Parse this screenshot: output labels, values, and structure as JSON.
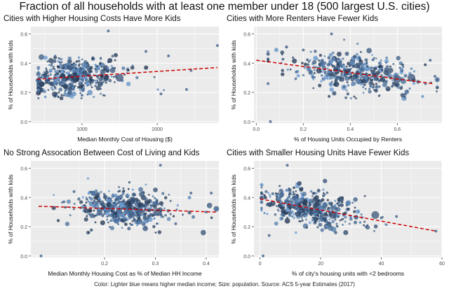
{
  "title": "Fraction of all households with at least one member under 18 (500 largest U.S. cities)",
  "caption": "Color: Lighter blue means higher median income; Size: population. Source: ACS 5-year Estimates (2017)",
  "colors": {
    "panel_bg": "#ebebeb",
    "grid": "#ffffff",
    "trend": "#cc0000",
    "point_dark": "#22344f",
    "point_light": "#6d9fd6"
  },
  "chart_data": [
    {
      "type": "scatter",
      "title": "Cities with Higher Housing Costs Have More Kids",
      "xlabel": "Median Monthly Cost of Housing ($)",
      "ylabel": "% of Households with kids",
      "xlim": [
        320,
        2820
      ],
      "ylim": [
        -0.01,
        0.65
      ],
      "xticks": [
        1000,
        2000
      ],
      "xtick_labels": [
        "1000",
        "2000"
      ],
      "yticks": [
        0.0,
        0.2,
        0.4,
        0.6
      ],
      "ytick_labels": [
        "0.0",
        "0.2",
        "0.4",
        "0.6"
      ],
      "trend": {
        "x": [
          400,
          2800
        ],
        "y": [
          0.29,
          0.37
        ]
      },
      "cluster": {
        "x_center": 900,
        "x_spread": 260,
        "x_min": 420,
        "x_max": 2780,
        "y_center": 0.33,
        "y_spread": 0.065,
        "count": 480
      },
      "points": [
        {
          "x": 1350,
          "y": 0.62
        },
        {
          "x": 2800,
          "y": 0.52
        },
        {
          "x": 2450,
          "y": 0.35
        },
        {
          "x": 2050,
          "y": 0.19
        },
        {
          "x": 2390,
          "y": 0.22
        },
        {
          "x": 1450,
          "y": 0.31
        },
        {
          "x": 430,
          "y": 0.3
        },
        {
          "x": 1000,
          "y": 0.18
        },
        {
          "x": 1850,
          "y": 0.48
        },
        {
          "x": 2150,
          "y": 0.45
        }
      ],
      "big_points": [
        {
          "x": 1500,
          "y": 0.3
        }
      ]
    },
    {
      "type": "scatter",
      "title": "Cities with More Renters Have Fewer Kids",
      "xlabel": "% of Housing Units Occupied by Renters",
      "ylabel": "% of Households with kids",
      "xlim": [
        -0.01,
        0.79
      ],
      "ylim": [
        -0.01,
        0.65
      ],
      "xticks": [
        0.0,
        0.2,
        0.4,
        0.6
      ],
      "xtick_labels": [
        "0.0",
        "0.2",
        "0.4",
        "0.6"
      ],
      "yticks": [
        0.0,
        0.2,
        0.4,
        0.6
      ],
      "ytick_labels": [
        "0.0",
        "0.2",
        "0.4",
        "0.6"
      ],
      "trend": {
        "x": [
          0.0,
          0.75
        ],
        "y": [
          0.42,
          0.26
        ]
      },
      "cluster": {
        "x_center": 0.42,
        "x_spread": 0.11,
        "x_min": 0.05,
        "x_max": 0.77,
        "y_center": 0.33,
        "y_spread": 0.065,
        "count": 480
      },
      "points": [
        {
          "x": 0.06,
          "y": 0.0
        },
        {
          "x": 0.05,
          "y": 0.26
        },
        {
          "x": 0.76,
          "y": 0.31
        },
        {
          "x": 0.74,
          "y": 0.42
        },
        {
          "x": 0.32,
          "y": 0.6
        },
        {
          "x": 0.2,
          "y": 0.49
        },
        {
          "x": 0.17,
          "y": 0.34
        },
        {
          "x": 0.72,
          "y": 0.26
        }
      ],
      "big_points": [
        {
          "x": 0.66,
          "y": 0.3
        },
        {
          "x": 0.6,
          "y": 0.29
        }
      ]
    },
    {
      "type": "scatter",
      "title": "No Strong Assocation Between Cost of Living and Kids",
      "xlabel": "Median Monthly Housing Cost as % of Median HH Income",
      "ylabel": "% of Households with kids",
      "xlim": [
        0.055,
        0.425
      ],
      "ylim": [
        -0.01,
        0.65
      ],
      "xticks": [
        0.2,
        0.3,
        0.4
      ],
      "xtick_labels": [
        "0.2",
        "0.3",
        "0.4"
      ],
      "yticks": [
        0.0,
        0.2,
        0.4,
        0.6
      ],
      "ytick_labels": [
        "0.0",
        "0.2",
        "0.4",
        "0.6"
      ],
      "trend": {
        "x": [
          0.07,
          0.42
        ],
        "y": [
          0.34,
          0.3
        ]
      },
      "cluster": {
        "x_center": 0.24,
        "x_spread": 0.04,
        "x_min": 0.1,
        "x_max": 0.42,
        "y_center": 0.33,
        "y_spread": 0.065,
        "count": 480
      },
      "points": [
        {
          "x": 0.075,
          "y": 0.0
        },
        {
          "x": 0.31,
          "y": 0.62
        },
        {
          "x": 0.41,
          "y": 0.43
        },
        {
          "x": 0.37,
          "y": 0.43
        },
        {
          "x": 0.14,
          "y": 0.44
        },
        {
          "x": 0.34,
          "y": 0.22
        },
        {
          "x": 0.4,
          "y": 0.3
        },
        {
          "x": 0.12,
          "y": 0.37
        }
      ],
      "big_points": [
        {
          "x": 0.305,
          "y": 0.3
        }
      ]
    },
    {
      "type": "scatter",
      "title": "Cities with Smaller Housing Units Have Fewer Kids",
      "xlabel": "% of city's housing units with <2 bedrooms",
      "ylabel": "% of Households with kids",
      "xlim": [
        -2,
        60
      ],
      "ylim": [
        -0.01,
        0.65
      ],
      "xticks": [
        0,
        20,
        40,
        60
      ],
      "xtick_labels": [
        "0",
        "20",
        "40",
        "60"
      ],
      "yticks": [
        0.0,
        0.2,
        0.4,
        0.6
      ],
      "ytick_labels": [
        "0.0",
        "0.2",
        "0.4",
        "0.6"
      ],
      "trend": {
        "x": [
          0,
          58
        ],
        "y": [
          0.39,
          0.17
        ]
      },
      "cluster": {
        "x_center": 16,
        "x_spread": 7,
        "x_min": 0.5,
        "x_max": 58,
        "y_center": 0.33,
        "y_spread": 0.065,
        "count": 480
      },
      "points": [
        {
          "x": 1,
          "y": 0.0
        },
        {
          "x": 58,
          "y": 0.17
        },
        {
          "x": 9,
          "y": 0.62
        },
        {
          "x": 2,
          "y": 0.44
        },
        {
          "x": 40,
          "y": 0.26
        },
        {
          "x": 35,
          "y": 0.2
        },
        {
          "x": 45,
          "y": 0.27
        },
        {
          "x": 3,
          "y": 0.14
        }
      ],
      "big_points": [
        {
          "x": 38,
          "y": 0.28
        },
        {
          "x": 24,
          "y": 0.28
        }
      ]
    }
  ]
}
